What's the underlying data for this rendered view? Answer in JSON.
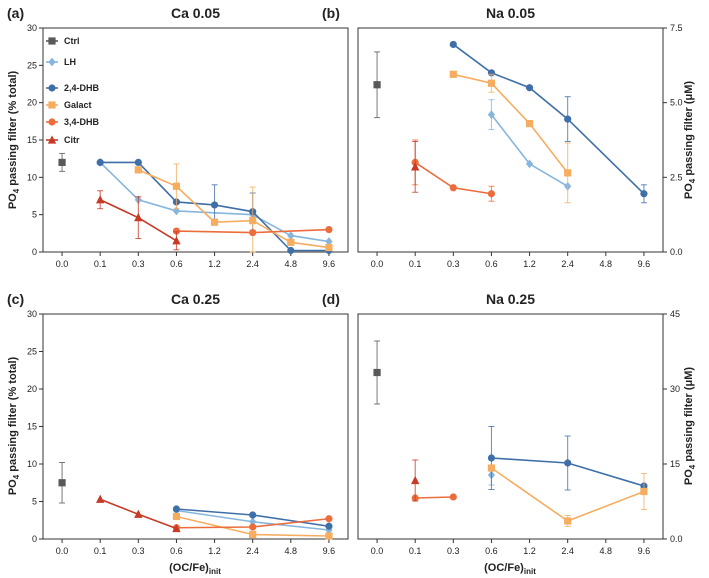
{
  "figure": {
    "shared_x_categories": [
      "0.0",
      "0.1",
      "0.3",
      "0.6",
      "1.2",
      "2.4",
      "4.8",
      "9.6"
    ],
    "xlabel_main": "(OC/Fe)",
    "xlabel_sub": "init",
    "ylabel_left_pre": "PO",
    "ylabel_left_sub": "4",
    "ylabel_left_post": " passing filter (% total)",
    "ylabel_right_pre": "PO",
    "ylabel_right_sub": "4",
    "ylabel_right_post": " passing filter (",
    "ylabel_right_unit": "μM",
    "ylabel_right_close": ")"
  },
  "legend": [
    {
      "name": "Ctrl",
      "color": "#595959",
      "marker": "square"
    },
    {
      "name": "LH",
      "color": "#86b6dd",
      "marker": "diamond"
    },
    {
      "name": "2,4-DHB",
      "color": "#3f6fa8",
      "marker": "circle"
    },
    {
      "name": "Galact",
      "color": "#f6ad5f",
      "marker": "square"
    },
    {
      "name": "3,4-DHB",
      "color": "#ec6d3c",
      "marker": "circle"
    },
    {
      "name": "Citr",
      "color": "#c73a26",
      "marker": "triangle"
    }
  ],
  "chart_data": [
    {
      "panel_label": "(a)",
      "title": "Ca 0.05",
      "type": "line",
      "categories": [
        "0.0",
        "0.1",
        "0.3",
        "0.6",
        "1.2",
        "2.4",
        "4.8",
        "9.6"
      ],
      "ylim": [
        0,
        30
      ],
      "yticks": [
        0,
        5,
        10,
        15,
        20,
        25,
        30
      ],
      "right_axis": null,
      "series": [
        {
          "name": "Ctrl",
          "points": [
            {
              "x": "0.0",
              "y": 12,
              "err": 1.2
            }
          ]
        },
        {
          "name": "LH",
          "points": [
            {
              "x": "0.1",
              "y": 12
            },
            {
              "x": "0.3",
              "y": 7
            },
            {
              "x": "0.6",
              "y": 5.5
            },
            {
              "x": "2.4",
              "y": 5
            },
            {
              "x": "4.8",
              "y": 2.2
            },
            {
              "x": "9.6",
              "y": 1.4
            }
          ]
        },
        {
          "name": "2,4-DHB",
          "points": [
            {
              "x": "0.1",
              "y": 12
            },
            {
              "x": "0.3",
              "y": 12
            },
            {
              "x": "0.6",
              "y": 6.7
            },
            {
              "x": "1.2",
              "y": 6.3,
              "err": 2.7
            },
            {
              "x": "2.4",
              "y": 5.4,
              "err": 2.5
            },
            {
              "x": "4.8",
              "y": 0.2
            },
            {
              "x": "9.6",
              "y": 0.2
            }
          ]
        },
        {
          "name": "Galact",
          "points": [
            {
              "x": "0.3",
              "y": 11
            },
            {
              "x": "0.6",
              "y": 8.8,
              "err": 3
            },
            {
              "x": "1.2",
              "y": 4
            },
            {
              "x": "2.4",
              "y": 4.2,
              "err": 4.5
            },
            {
              "x": "4.8",
              "y": 1.3
            },
            {
              "x": "9.6",
              "y": 0.6
            }
          ]
        },
        {
          "name": "3,4-DHB",
          "points": [
            {
              "x": "0.6",
              "y": 2.8
            },
            {
              "x": "2.4",
              "y": 2.6
            },
            {
              "x": "9.6",
              "y": 3
            }
          ]
        },
        {
          "name": "Citr",
          "points": [
            {
              "x": "0.1",
              "y": 7,
              "err": 1.2
            },
            {
              "x": "0.3",
              "y": 4.6,
              "err": 2.8
            },
            {
              "x": "0.6",
              "y": 1.5,
              "err": 1.2
            }
          ]
        }
      ]
    },
    {
      "panel_label": "(b)",
      "title": "Na 0.05",
      "type": "line",
      "categories": [
        "0.0",
        "0.1",
        "0.3",
        "0.6",
        "1.2",
        "2.4",
        "4.8",
        "9.6"
      ],
      "ylim": [
        0,
        7.5
      ],
      "yticks": [
        0,
        2.5,
        5.0,
        7.5
      ],
      "right_axis": {
        "ticks": [
          "0.0",
          "2.5",
          "5.0",
          "7.5"
        ]
      },
      "series": [
        {
          "name": "Ctrl",
          "points": [
            {
              "x": "0.0",
              "y": 5.6,
              "err": 1.1
            }
          ]
        },
        {
          "name": "LH",
          "points": [
            {
              "x": "0.6",
              "y": 4.6,
              "err": 0.5
            },
            {
              "x": "1.2",
              "y": 2.95
            },
            {
              "x": "2.4",
              "y": 2.2
            }
          ]
        },
        {
          "name": "2,4-DHB",
          "points": [
            {
              "x": "0.3",
              "y": 6.95
            },
            {
              "x": "0.6",
              "y": 6.0
            },
            {
              "x": "1.2",
              "y": 5.5
            },
            {
              "x": "2.4",
              "y": 4.45,
              "err": 0.75
            },
            {
              "x": "9.6",
              "y": 1.95,
              "err": 0.3
            }
          ]
        },
        {
          "name": "Galact",
          "points": [
            {
              "x": "0.3",
              "y": 5.95
            },
            {
              "x": "0.6",
              "y": 5.65,
              "err": 0.3
            },
            {
              "x": "1.2",
              "y": 4.3
            },
            {
              "x": "2.4",
              "y": 2.65,
              "err": 1.0
            }
          ]
        },
        {
          "name": "3,4-DHB",
          "points": [
            {
              "x": "0.1",
              "y": 3.0,
              "err": 0.75
            },
            {
              "x": "0.3",
              "y": 2.15
            },
            {
              "x": "0.6",
              "y": 1.95,
              "err": 0.25
            }
          ]
        },
        {
          "name": "Citr",
          "points": [
            {
              "x": "0.1",
              "y": 2.85,
              "err": 0.85
            }
          ]
        }
      ]
    },
    {
      "panel_label": "(c)",
      "title": "Ca 0.25",
      "type": "line",
      "categories": [
        "0.0",
        "0.1",
        "0.3",
        "0.6",
        "1.2",
        "2.4",
        "4.8",
        "9.6"
      ],
      "ylim": [
        0,
        30
      ],
      "yticks": [
        0,
        5,
        10,
        15,
        20,
        25,
        30
      ],
      "right_axis": null,
      "series": [
        {
          "name": "Ctrl",
          "points": [
            {
              "x": "0.0",
              "y": 7.5,
              "err": 2.7
            }
          ]
        },
        {
          "name": "LH",
          "points": [
            {
              "x": "0.6",
              "y": 3.8
            },
            {
              "x": "2.4",
              "y": 2.3
            },
            {
              "x": "9.6",
              "y": 1.2
            }
          ]
        },
        {
          "name": "2,4-DHB",
          "points": [
            {
              "x": "0.6",
              "y": 4
            },
            {
              "x": "2.4",
              "y": 3.2
            },
            {
              "x": "9.6",
              "y": 1.7
            }
          ]
        },
        {
          "name": "Galact",
          "points": [
            {
              "x": "0.6",
              "y": 3
            },
            {
              "x": "2.4",
              "y": 0.6
            },
            {
              "x": "9.6",
              "y": 0.4
            }
          ]
        },
        {
          "name": "3,4-DHB",
          "points": [
            {
              "x": "0.6",
              "y": 1.5
            },
            {
              "x": "2.4",
              "y": 1.6
            },
            {
              "x": "9.6",
              "y": 2.7
            }
          ]
        },
        {
          "name": "Citr",
          "points": [
            {
              "x": "0.1",
              "y": 5.3
            },
            {
              "x": "0.3",
              "y": 3.3
            },
            {
              "x": "0.6",
              "y": 1.4
            }
          ]
        }
      ]
    },
    {
      "panel_label": "(d)",
      "title": "Na 0.25",
      "type": "line",
      "categories": [
        "0.0",
        "0.1",
        "0.3",
        "0.6",
        "1.2",
        "2.4",
        "4.8",
        "9.6"
      ],
      "ylim": [
        0,
        45
      ],
      "yticks": [
        0,
        15,
        30,
        45
      ],
      "right_axis": {
        "ticks": [
          "0.0",
          "15",
          "30",
          "45"
        ]
      },
      "series": [
        {
          "name": "Ctrl",
          "points": [
            {
              "x": "0.0",
              "y": 33.3,
              "err": 6.3
            }
          ]
        },
        {
          "name": "LH",
          "points": [
            {
              "x": "0.6",
              "y": 12.8,
              "err": 2
            }
          ]
        },
        {
          "name": "2,4-DHB",
          "points": [
            {
              "x": "0.6",
              "y": 16.2,
              "err": 6.3
            },
            {
              "x": "2.4",
              "y": 15.2,
              "err": 5.4
            },
            {
              "x": "9.6",
              "y": 10.6
            }
          ]
        },
        {
          "name": "Galact",
          "points": [
            {
              "x": "0.6",
              "y": 14.2
            },
            {
              "x": "2.4",
              "y": 3.6,
              "err": 1.1
            },
            {
              "x": "9.6",
              "y": 9.5,
              "err": 3.6
            }
          ]
        },
        {
          "name": "3,4-DHB",
          "points": [
            {
              "x": "0.1",
              "y": 8.2
            },
            {
              "x": "0.3",
              "y": 8.4
            }
          ]
        },
        {
          "name": "Citr",
          "points": [
            {
              "x": "0.1",
              "y": 11.7,
              "err": 4.1
            }
          ]
        }
      ]
    }
  ]
}
